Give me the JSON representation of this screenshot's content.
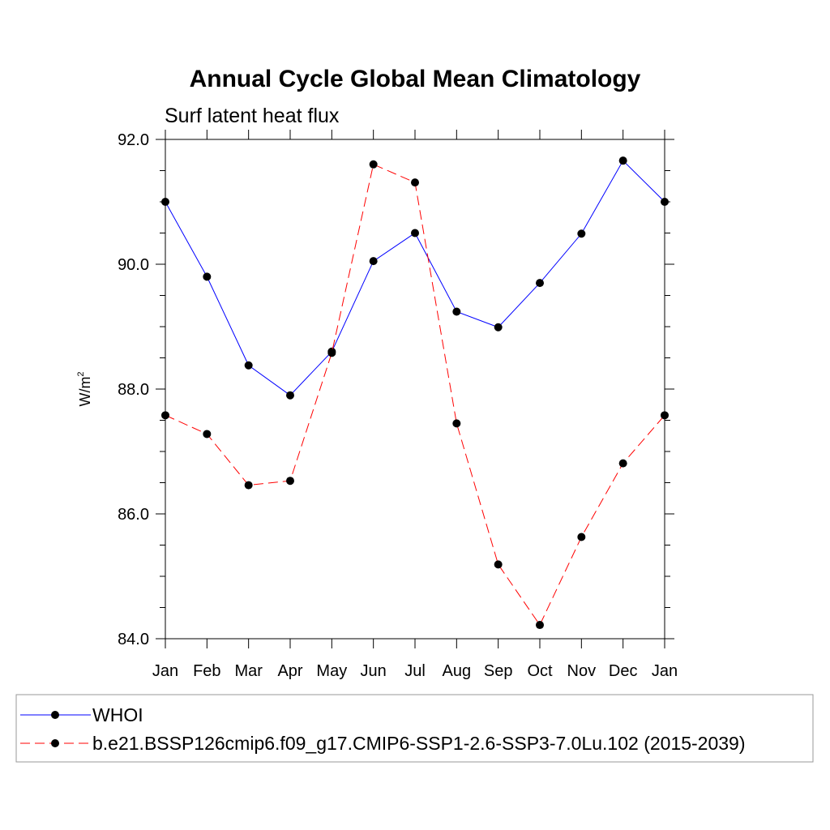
{
  "chart_data": {
    "type": "line",
    "title": "Annual Cycle Global Mean Climatology",
    "subtitle": "Surf latent heat flux",
    "ylabel": "W/m",
    "ylabel_sup": "2",
    "categories": [
      "Jan",
      "Feb",
      "Mar",
      "Apr",
      "May",
      "Jun",
      "Jul",
      "Aug",
      "Sep",
      "Oct",
      "Nov",
      "Dec",
      "Jan"
    ],
    "ylim": [
      84.0,
      92.0
    ],
    "yticks": [
      "84.0",
      "86.0",
      "88.0",
      "90.0",
      "92.0"
    ],
    "ytick_values": [
      84,
      86,
      88,
      90,
      92
    ],
    "grid": false,
    "legend_position": "bottom",
    "series": [
      {
        "name": "WHOI",
        "color": "#0000ff",
        "dash": "solid",
        "values": [
          91.0,
          89.8,
          88.38,
          87.9,
          88.6,
          90.05,
          90.5,
          89.24,
          88.99,
          89.7,
          90.49,
          91.66,
          91.0
        ]
      },
      {
        "name": "b.e21.BSSP126cmip6.f09_g17.CMIP6-SSP1-2.6-SSP3-7.0Lu.102 (2015-2039)",
        "color": "#ff0000",
        "dash": "dashed",
        "values": [
          87.58,
          87.28,
          86.46,
          86.53,
          88.58,
          91.6,
          91.31,
          87.45,
          85.19,
          84.22,
          85.63,
          86.81,
          87.58
        ]
      }
    ]
  }
}
